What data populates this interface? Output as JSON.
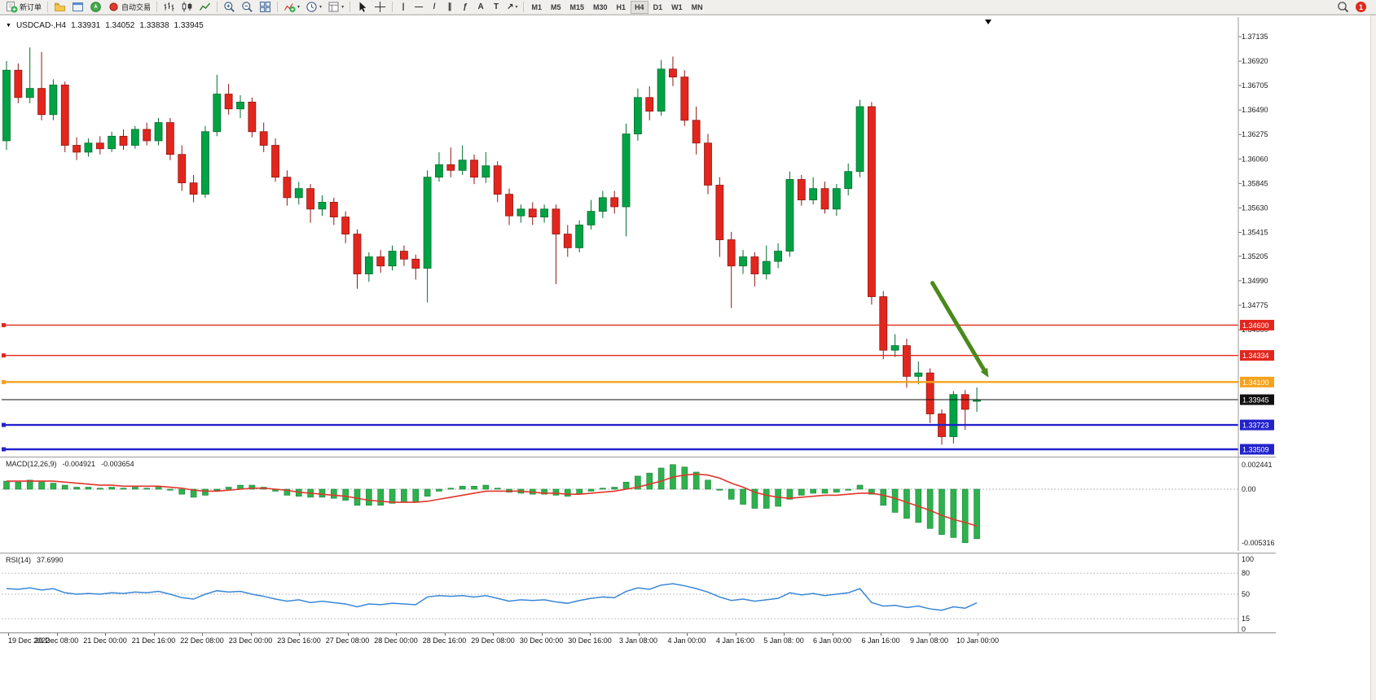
{
  "toolbar": {
    "caret_glyph": "▾",
    "notification_count": "1",
    "timeframes": [
      "M1",
      "M5",
      "M15",
      "M30",
      "H1",
      "H4",
      "D1",
      "W1",
      "MN"
    ],
    "active_timeframe": "H4",
    "groups": [
      {
        "items": [
          {
            "name": "new-order-button",
            "icon": "neworder",
            "label": "新订单"
          }
        ]
      },
      {
        "items": [
          {
            "name": "market-watch-button",
            "icon": "folder"
          },
          {
            "name": "data-window-button",
            "icon": "window"
          },
          {
            "name": "navigator-button",
            "icon": "navigator"
          },
          {
            "name": "autotrading-button",
            "icon": "record",
            "label": "自动交易"
          }
        ]
      },
      {
        "items": [
          {
            "name": "bar-chart-button",
            "icon": "bars"
          },
          {
            "name": "candle-chart-button",
            "icon": "candles"
          },
          {
            "name": "line-chart-button",
            "icon": "linechart"
          }
        ]
      },
      {
        "items": [
          {
            "name": "zoom-in-button",
            "icon": "zoomin"
          },
          {
            "name": "zoom-out-button",
            "icon": "zoomout"
          },
          {
            "name": "tile-windows-button",
            "icon": "tile"
          }
        ]
      },
      {
        "items": [
          {
            "name": "indicators-button",
            "icon": "indicators",
            "caret": true
          },
          {
            "name": "periods-button",
            "icon": "clock",
            "caret": true
          },
          {
            "name": "templates-button",
            "icon": "template",
            "caret": true
          }
        ]
      },
      {
        "items": [
          {
            "name": "cursor-button",
            "icon": "cursor"
          },
          {
            "name": "crosshair-button",
            "icon": "crosshair"
          }
        ]
      },
      {
        "items": [
          {
            "name": "vline-tool-button",
            "glyph": "|"
          },
          {
            "name": "hline-tool-button",
            "glyph": "—"
          },
          {
            "name": "trendline-tool-button",
            "glyph": "/"
          },
          {
            "name": "channel-tool-button",
            "glyph": "∥"
          },
          {
            "name": "fibonacci-tool-button",
            "glyph": "ƒ"
          },
          {
            "name": "text-tool-button",
            "glyph": "A"
          },
          {
            "name": "label-tool-button",
            "glyph": "T"
          },
          {
            "name": "arrows-tool-button",
            "glyph": "↗",
            "caret": true
          }
        ]
      }
    ]
  },
  "chart": {
    "title": {
      "marker": "▼",
      "symbol": "USDCAD-,H4",
      "open": "1.33931",
      "high": "1.34052",
      "low": "1.33838",
      "close": "1.33945"
    },
    "price_axis_ticks": [
      "1.37135",
      "1.36920",
      "1.36705",
      "1.36490",
      "1.36275",
      "1.36060",
      "1.35845",
      "1.35630",
      "1.35415",
      "1.35205",
      "1.34990",
      "1.34775",
      "1.34560"
    ],
    "colors": {
      "up": "#00a344",
      "up_stroke": "#046d2f",
      "down": "#e3261d",
      "down_stroke": "#8f1712",
      "macd_hist": "#2fb14e",
      "macd_hist_stroke": "#148538",
      "macd_signal": "#e2352b",
      "rsi_line": "#3a87d6",
      "arrow": "#4a8a1c",
      "current_price": "#111111"
    }
  },
  "chart_data": {
    "type": "candlestick",
    "symbol": "USDCAD",
    "timeframe": "H4",
    "price_axis": {
      "min": 1.3346,
      "max": 1.3729
    },
    "candles": [
      [
        1.3622,
        1.3692,
        1.3614,
        1.3684
      ],
      [
        1.3684,
        1.369,
        1.3655,
        1.366
      ],
      [
        1.366,
        1.3704,
        1.3655,
        1.3668
      ],
      [
        1.3668,
        1.37,
        1.364,
        1.3645
      ],
      [
        1.3645,
        1.3676,
        1.364,
        1.3671
      ],
      [
        1.3671,
        1.3674,
        1.3612,
        1.3618
      ],
      [
        1.3618,
        1.3625,
        1.3605,
        1.3612
      ],
      [
        1.3612,
        1.3624,
        1.3608,
        1.362
      ],
      [
        1.362,
        1.3626,
        1.361,
        1.3615
      ],
      [
        1.3615,
        1.363,
        1.3612,
        1.3626
      ],
      [
        1.3626,
        1.3632,
        1.3614,
        1.3618
      ],
      [
        1.3618,
        1.3635,
        1.3615,
        1.3632
      ],
      [
        1.3632,
        1.3638,
        1.3618,
        1.3622
      ],
      [
        1.3622,
        1.3642,
        1.3618,
        1.3638
      ],
      [
        1.3638,
        1.3642,
        1.3605,
        1.361
      ],
      [
        1.361,
        1.3618,
        1.3578,
        1.3585
      ],
      [
        1.3585,
        1.3592,
        1.3568,
        1.3575
      ],
      [
        1.3575,
        1.3635,
        1.3572,
        1.363
      ],
      [
        1.363,
        1.368,
        1.3626,
        1.3663
      ],
      [
        1.3663,
        1.3672,
        1.3645,
        1.365
      ],
      [
        1.365,
        1.3662,
        1.3642,
        1.3656
      ],
      [
        1.3656,
        1.366,
        1.3625,
        1.363
      ],
      [
        1.363,
        1.3638,
        1.3612,
        1.3618
      ],
      [
        1.3618,
        1.3624,
        1.3586,
        1.359
      ],
      [
        1.359,
        1.3596,
        1.3565,
        1.3572
      ],
      [
        1.3572,
        1.3586,
        1.3566,
        1.358
      ],
      [
        1.358,
        1.3584,
        1.355,
        1.3562
      ],
      [
        1.3562,
        1.3574,
        1.3556,
        1.3568
      ],
      [
        1.3568,
        1.3572,
        1.3548,
        1.3555
      ],
      [
        1.3555,
        1.356,
        1.3532,
        1.354
      ],
      [
        1.354,
        1.3544,
        1.3492,
        1.3505
      ],
      [
        1.3505,
        1.3524,
        1.3498,
        1.352
      ],
      [
        1.352,
        1.3526,
        1.3506,
        1.3512
      ],
      [
        1.3512,
        1.353,
        1.3508,
        1.3525
      ],
      [
        1.3525,
        1.353,
        1.3512,
        1.3518
      ],
      [
        1.3518,
        1.3522,
        1.35,
        1.351
      ],
      [
        1.351,
        1.3596,
        1.348,
        1.359
      ],
      [
        1.359,
        1.3612,
        1.3586,
        1.3601
      ],
      [
        1.3601,
        1.3616,
        1.359,
        1.3596
      ],
      [
        1.3596,
        1.3618,
        1.3592,
        1.3605
      ],
      [
        1.3605,
        1.361,
        1.3584,
        1.359
      ],
      [
        1.359,
        1.3612,
        1.3585,
        1.36
      ],
      [
        1.36,
        1.3604,
        1.3568,
        1.3575
      ],
      [
        1.3575,
        1.358,
        1.3548,
        1.3556
      ],
      [
        1.3556,
        1.3566,
        1.355,
        1.3562
      ],
      [
        1.3562,
        1.3568,
        1.3548,
        1.3555
      ],
      [
        1.3555,
        1.3566,
        1.355,
        1.3562
      ],
      [
        1.3562,
        1.3566,
        1.3496,
        1.354
      ],
      [
        1.354,
        1.3548,
        1.352,
        1.3528
      ],
      [
        1.3528,
        1.3552,
        1.3524,
        1.3548
      ],
      [
        1.3548,
        1.357,
        1.3544,
        1.356
      ],
      [
        1.356,
        1.3578,
        1.3554,
        1.3572
      ],
      [
        1.3572,
        1.3578,
        1.3558,
        1.3564
      ],
      [
        1.3564,
        1.3637,
        1.3538,
        1.3628
      ],
      [
        1.3628,
        1.3668,
        1.3622,
        1.366
      ],
      [
        1.366,
        1.367,
        1.364,
        1.3648
      ],
      [
        1.3648,
        1.3693,
        1.3644,
        1.3685
      ],
      [
        1.3685,
        1.3696,
        1.367,
        1.3678
      ],
      [
        1.3678,
        1.3684,
        1.3635,
        1.364
      ],
      [
        1.364,
        1.3652,
        1.361,
        1.362
      ],
      [
        1.362,
        1.3628,
        1.3575,
        1.3583
      ],
      [
        1.3583,
        1.359,
        1.352,
        1.3535
      ],
      [
        1.3535,
        1.3542,
        1.3475,
        1.3512
      ],
      [
        1.3512,
        1.3526,
        1.3505,
        1.352
      ],
      [
        1.352,
        1.3524,
        1.3494,
        1.3505
      ],
      [
        1.3505,
        1.353,
        1.35,
        1.3516
      ],
      [
        1.3516,
        1.3532,
        1.351,
        1.3525
      ],
      [
        1.3525,
        1.3595,
        1.352,
        1.3588
      ],
      [
        1.3588,
        1.3592,
        1.3565,
        1.357
      ],
      [
        1.357,
        1.359,
        1.3566,
        1.358
      ],
      [
        1.358,
        1.3586,
        1.3558,
        1.3562
      ],
      [
        1.3562,
        1.3584,
        1.3556,
        1.358
      ],
      [
        1.358,
        1.3602,
        1.3574,
        1.3595
      ],
      [
        1.3595,
        1.3658,
        1.359,
        1.3652
      ],
      [
        1.3652,
        1.3656,
        1.3478,
        1.3485
      ],
      [
        1.3485,
        1.349,
        1.343,
        1.3438
      ],
      [
        1.3438,
        1.3452,
        1.3432,
        1.3442
      ],
      [
        1.3442,
        1.3448,
        1.3405,
        1.3415
      ],
      [
        1.3415,
        1.3428,
        1.3408,
        1.3418
      ],
      [
        1.3418,
        1.3422,
        1.3374,
        1.3382
      ],
      [
        1.3382,
        1.3386,
        1.3355,
        1.3362
      ],
      [
        1.3362,
        1.3402,
        1.3356,
        1.3399
      ],
      [
        1.3399,
        1.3403,
        1.3368,
        1.3386
      ],
      [
        1.33931,
        1.34052,
        1.33838,
        1.33945
      ]
    ],
    "hlines": [
      {
        "price": 1.346,
        "label": "1.34600",
        "color": "#e3261d",
        "width": 1.4,
        "handle": true
      },
      {
        "price": 1.34334,
        "label": "1.34334",
        "color": "#e3261d",
        "width": 1.4,
        "handle": true
      },
      {
        "price": 1.341,
        "label": "1.34100",
        "color": "#f5a21d",
        "width": 2.4,
        "handle": true
      },
      {
        "price": 1.33945,
        "label": "1.33945",
        "color": "#111111",
        "width": 1,
        "handle": false
      },
      {
        "price": 1.33723,
        "label": "1.33723",
        "color": "#2222cc",
        "width": 2.4,
        "handle": true
      },
      {
        "price": 1.33509,
        "label": "1.33509",
        "color": "#2222cc",
        "width": 2.4,
        "handle": true
      }
    ],
    "time_labels": [
      "19 Dec 2022",
      "20 Dec 08:00",
      "21 Dec 00:00",
      "21 Dec 16:00",
      "22 Dec 08:00",
      "23 Dec 00:00",
      "23 Dec 16:00",
      "27 Dec 08:00",
      "28 Dec 00:00",
      "28 Dec 16:00",
      "29 Dec 08:00",
      "30 Dec 00:00",
      "30 Dec 16:00",
      "3 Jan 08:00",
      "4 Jan 00:00",
      "4 Jan 16:00",
      "5 Jan 08: 00",
      "6 Jan 00:00",
      "6 Jan 16:00",
      "9 Jan 08:00",
      "10 Jan 00:00"
    ],
    "macd": {
      "label": "MACD(12,26,9)",
      "value": "-0.004921",
      "signal_value": "-0.003654",
      "axis_labels": [
        {
          "text": "0.002441",
          "value": 0.002441
        },
        {
          "text": "0.00",
          "value": 0
        },
        {
          "text": "-0.005316",
          "value": -0.005316
        }
      ],
      "hist": [
        0.0008,
        0.0007,
        0.0009,
        0.0008,
        0.0006,
        0.0004,
        0.0002,
        0.0002,
        0.0001,
        0.0002,
        0.0001,
        0.0002,
        0.0001,
        0.0002,
        -0.0001,
        -0.0005,
        -0.0008,
        -0.0006,
        -0.0001,
        0.0002,
        0.0004,
        0.0004,
        0.0002,
        -0.0002,
        -0.0006,
        -0.0007,
        -0.0008,
        -0.0008,
        -0.0009,
        -0.0011,
        -0.0016,
        -0.0016,
        -0.0016,
        -0.0014,
        -0.0013,
        -0.0013,
        -0.0007,
        -0.0002,
        0.0001,
        0.0003,
        0.0003,
        0.0004,
        0.0001,
        -0.0003,
        -0.0004,
        -0.0005,
        -0.0005,
        -0.0006,
        -0.0007,
        -0.0005,
        -0.0002,
        0.0001,
        0.0002,
        0.0007,
        0.0013,
        0.0016,
        0.0021,
        0.002441,
        0.0022,
        0.0017,
        0.0009,
        -0.0001,
        -0.001,
        -0.0015,
        -0.0019,
        -0.0019,
        -0.0017,
        -0.001,
        -0.0006,
        -0.0004,
        -0.0004,
        -0.0003,
        -0.0001,
        0.0004,
        -0.0005,
        -0.0016,
        -0.0023,
        -0.0029,
        -0.0033,
        -0.0039,
        -0.0045,
        -0.0048,
        -0.005316,
        -0.004921
      ],
      "signal": [
        0.0008,
        0.0008,
        0.0008,
        0.0008,
        0.0008,
        0.0007,
        0.0006,
        0.0005,
        0.0004,
        0.0004,
        0.0003,
        0.0003,
        0.0003,
        0.0003,
        0.0002,
        0.0001,
        -0.0001,
        -0.0002,
        -0.0002,
        -0.0001,
        0.0,
        0.0001,
        0.0001,
        0.0,
        -0.0001,
        -0.0003,
        -0.0004,
        -0.0005,
        -0.0006,
        -0.0007,
        -0.0009,
        -0.0011,
        -0.0012,
        -0.0013,
        -0.0013,
        -0.0013,
        -0.0012,
        -0.001,
        -0.0008,
        -0.0006,
        -0.0004,
        -0.0002,
        -0.0002,
        -0.0002,
        -0.0002,
        -0.0003,
        -0.0004,
        -0.0004,
        -0.0005,
        -0.0005,
        -0.0004,
        -0.0003,
        -0.0002,
        0.0,
        0.0002,
        0.0005,
        0.0008,
        0.0012,
        0.0014,
        0.0015,
        0.0014,
        0.0011,
        0.0006,
        0.0002,
        -0.0003,
        -0.0006,
        -0.0008,
        -0.0009,
        -0.0008,
        -0.0007,
        -0.0006,
        -0.0006,
        -0.0005,
        -0.0004,
        -0.0004,
        -0.0006,
        -0.0009,
        -0.0013,
        -0.0017,
        -0.0021,
        -0.0026,
        -0.003,
        -0.0033,
        -0.003654
      ]
    },
    "rsi": {
      "label": "RSI(14)",
      "value": "37.6990",
      "levels": [
        100,
        80,
        50,
        15,
        0
      ],
      "dashed_levels": [
        80,
        50,
        15
      ],
      "series": [
        58,
        57,
        59,
        56,
        58,
        52,
        50,
        51,
        50,
        52,
        51,
        53,
        52,
        54,
        50,
        45,
        43,
        50,
        55,
        53,
        54,
        50,
        47,
        43,
        40,
        42,
        38,
        40,
        38,
        36,
        32,
        36,
        35,
        37,
        36,
        35,
        46,
        48,
        47,
        48,
        46,
        48,
        44,
        40,
        42,
        41,
        42,
        39,
        37,
        41,
        44,
        46,
        45,
        54,
        59,
        57,
        63,
        65,
        62,
        58,
        53,
        46,
        41,
        43,
        40,
        42,
        44,
        52,
        49,
        51,
        48,
        50,
        52,
        58,
        38,
        33,
        34,
        31,
        33,
        29,
        27,
        32,
        30,
        37.7
      ]
    },
    "annotations": [
      {
        "type": "arrow",
        "from_bar": 79.2,
        "from_price": 1.3497,
        "to_bar": 84.0,
        "to_price": 1.3414,
        "color": "#4a8a1c"
      }
    ]
  }
}
